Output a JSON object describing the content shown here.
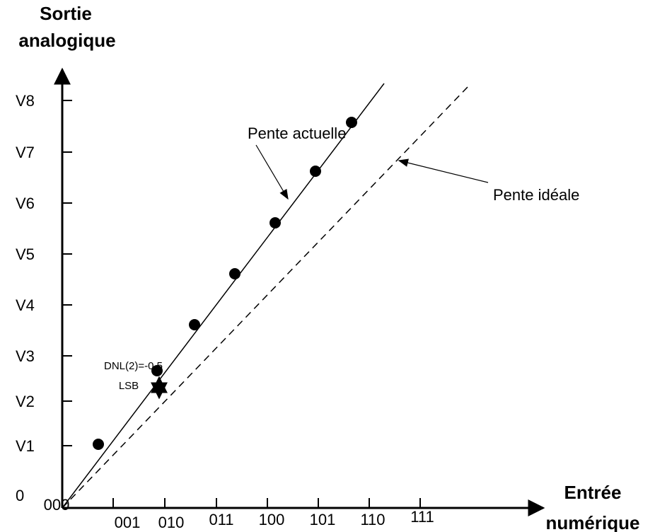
{
  "y_axis": {
    "title": [
      "Sortie",
      "analogique"
    ],
    "labels": [
      "0",
      "V1",
      "V2",
      "V3",
      "V4",
      "V5",
      "V6",
      "V7",
      "V8"
    ]
  },
  "x_axis": {
    "title": [
      "Entrée",
      "numérique"
    ],
    "labels": [
      "000",
      "001",
      "010",
      "011",
      "100",
      "101",
      "110",
      "111"
    ]
  },
  "annotations": {
    "actual": "Pente actuelle",
    "ideal": "Pente idéale",
    "dnl": [
      "DNL(2)=-0.5",
      "LSB"
    ]
  }
}
